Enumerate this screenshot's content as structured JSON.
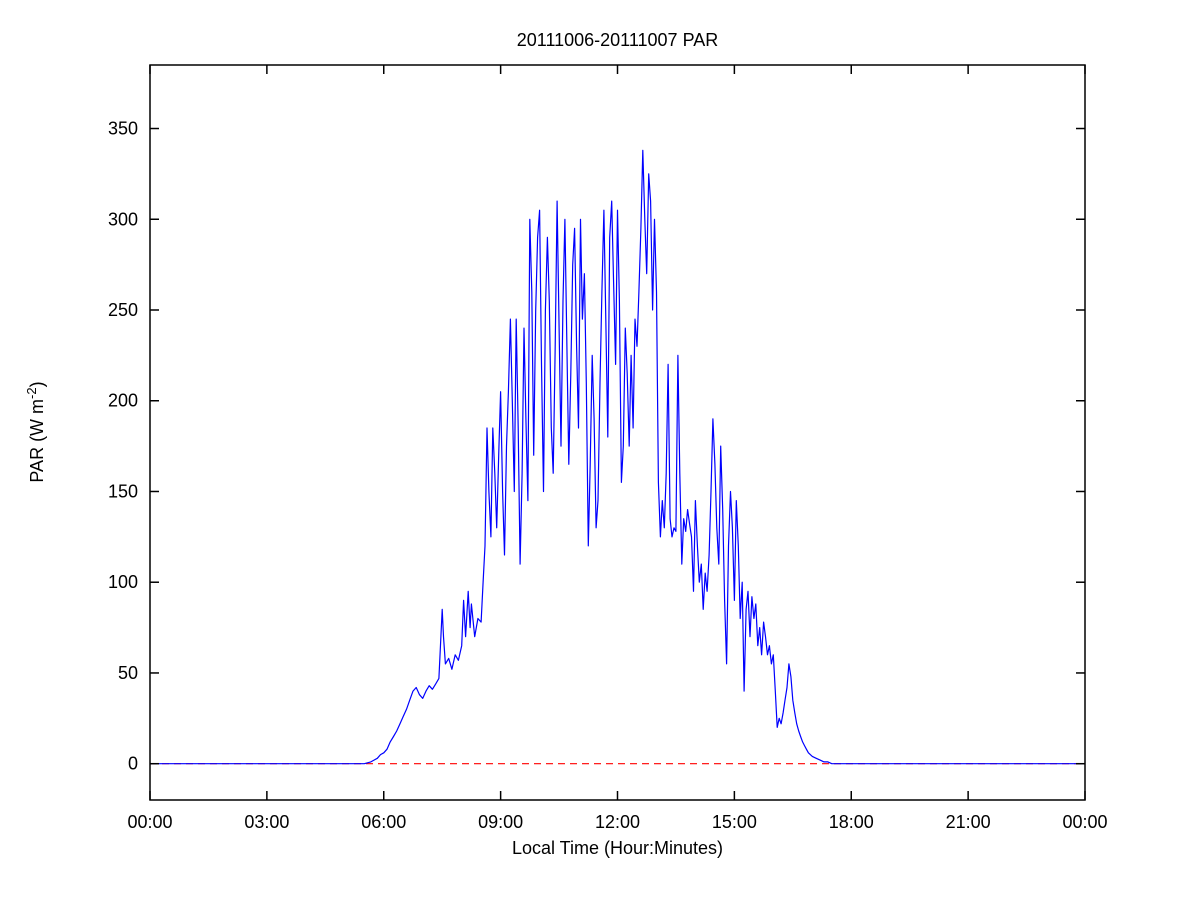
{
  "chart_data": {
    "type": "line",
    "title": "20111006-20111007 PAR",
    "xlabel": "Local Time (Hour:Minutes)",
    "ylabel": "PAR (W m-2)",
    "ylabel_parts": {
      "prefix": "PAR (W m",
      "superscript": "-2",
      "suffix": ")"
    },
    "grid": false,
    "legend": "none",
    "xlim_minutes": [
      0,
      1440
    ],
    "ylim": [
      -20,
      385
    ],
    "xticks": [
      {
        "minute": 0,
        "label": "00:00"
      },
      {
        "minute": 180,
        "label": "03:00"
      },
      {
        "minute": 360,
        "label": "06:00"
      },
      {
        "minute": 540,
        "label": "09:00"
      },
      {
        "minute": 720,
        "label": "12:00"
      },
      {
        "minute": 900,
        "label": "15:00"
      },
      {
        "minute": 1080,
        "label": "18:00"
      },
      {
        "minute": 1260,
        "label": "21:00"
      },
      {
        "minute": 1440,
        "label": "00:00"
      }
    ],
    "yticks": [
      0,
      50,
      100,
      150,
      200,
      250,
      300,
      350
    ],
    "series": [
      {
        "name": "zero-reference-line",
        "color": "#ff0000",
        "style": "dashed",
        "dash": "7 5",
        "points": [
          [
            0,
            0
          ],
          [
            1440,
            0
          ]
        ]
      },
      {
        "name": "par-measurement-line",
        "color": "#0000ff",
        "style": "solid",
        "points": [
          [
            0,
            0
          ],
          [
            60,
            0
          ],
          [
            120,
            0
          ],
          [
            180,
            0
          ],
          [
            240,
            0
          ],
          [
            300,
            0
          ],
          [
            330,
            0
          ],
          [
            340,
            1
          ],
          [
            345,
            2
          ],
          [
            350,
            3
          ],
          [
            355,
            5
          ],
          [
            360,
            6
          ],
          [
            365,
            8
          ],
          [
            370,
            12
          ],
          [
            375,
            15
          ],
          [
            380,
            18
          ],
          [
            385,
            22
          ],
          [
            390,
            26
          ],
          [
            395,
            30
          ],
          [
            400,
            35
          ],
          [
            405,
            40
          ],
          [
            410,
            42
          ],
          [
            415,
            38
          ],
          [
            420,
            36
          ],
          [
            425,
            40
          ],
          [
            430,
            43
          ],
          [
            435,
            41
          ],
          [
            440,
            44
          ],
          [
            445,
            47
          ],
          [
            450,
            85
          ],
          [
            452,
            70
          ],
          [
            455,
            55
          ],
          [
            460,
            58
          ],
          [
            465,
            52
          ],
          [
            470,
            60
          ],
          [
            475,
            57
          ],
          [
            480,
            65
          ],
          [
            483,
            90
          ],
          [
            486,
            70
          ],
          [
            490,
            95
          ],
          [
            493,
            75
          ],
          [
            495,
            88
          ],
          [
            500,
            70
          ],
          [
            505,
            80
          ],
          [
            510,
            78
          ],
          [
            513,
            100
          ],
          [
            516,
            120
          ],
          [
            519,
            185
          ],
          [
            522,
            150
          ],
          [
            525,
            125
          ],
          [
            528,
            185
          ],
          [
            531,
            160
          ],
          [
            534,
            130
          ],
          [
            537,
            170
          ],
          [
            540,
            205
          ],
          [
            543,
            150
          ],
          [
            546,
            115
          ],
          [
            549,
            175
          ],
          [
            552,
            205
          ],
          [
            555,
            245
          ],
          [
            558,
            200
          ],
          [
            561,
            150
          ],
          [
            564,
            245
          ],
          [
            567,
            185
          ],
          [
            570,
            110
          ],
          [
            573,
            160
          ],
          [
            576,
            240
          ],
          [
            579,
            190
          ],
          [
            582,
            145
          ],
          [
            585,
            300
          ],
          [
            588,
            260
          ],
          [
            591,
            170
          ],
          [
            594,
            250
          ],
          [
            597,
            290
          ],
          [
            600,
            305
          ],
          [
            603,
            220
          ],
          [
            606,
            150
          ],
          [
            609,
            250
          ],
          [
            612,
            290
          ],
          [
            615,
            255
          ],
          [
            618,
            185
          ],
          [
            621,
            160
          ],
          [
            624,
            230
          ],
          [
            627,
            310
          ],
          [
            630,
            240
          ],
          [
            633,
            175
          ],
          [
            636,
            255
          ],
          [
            639,
            300
          ],
          [
            642,
            230
          ],
          [
            645,
            165
          ],
          [
            648,
            215
          ],
          [
            651,
            275
          ],
          [
            654,
            295
          ],
          [
            657,
            230
          ],
          [
            660,
            185
          ],
          [
            663,
            300
          ],
          [
            666,
            245
          ],
          [
            669,
            270
          ],
          [
            672,
            210
          ],
          [
            675,
            120
          ],
          [
            678,
            165
          ],
          [
            681,
            225
          ],
          [
            684,
            190
          ],
          [
            687,
            130
          ],
          [
            690,
            145
          ],
          [
            693,
            210
          ],
          [
            696,
            260
          ],
          [
            699,
            305
          ],
          [
            702,
            245
          ],
          [
            705,
            180
          ],
          [
            708,
            290
          ],
          [
            711,
            310
          ],
          [
            714,
            265
          ],
          [
            717,
            220
          ],
          [
            720,
            305
          ],
          [
            723,
            255
          ],
          [
            726,
            155
          ],
          [
            729,
            175
          ],
          [
            732,
            240
          ],
          [
            735,
            215
          ],
          [
            738,
            175
          ],
          [
            741,
            225
          ],
          [
            744,
            185
          ],
          [
            747,
            245
          ],
          [
            750,
            230
          ],
          [
            753,
            260
          ],
          [
            756,
            295
          ],
          [
            759,
            338
          ],
          [
            762,
            300
          ],
          [
            765,
            270
          ],
          [
            768,
            325
          ],
          [
            771,
            310
          ],
          [
            774,
            250
          ],
          [
            777,
            300
          ],
          [
            780,
            260
          ],
          [
            783,
            155
          ],
          [
            786,
            125
          ],
          [
            789,
            145
          ],
          [
            792,
            130
          ],
          [
            795,
            160
          ],
          [
            798,
            220
          ],
          [
            801,
            135
          ],
          [
            804,
            125
          ],
          [
            807,
            130
          ],
          [
            810,
            128
          ],
          [
            813,
            225
          ],
          [
            816,
            160
          ],
          [
            819,
            110
          ],
          [
            822,
            135
          ],
          [
            825,
            128
          ],
          [
            828,
            140
          ],
          [
            831,
            132
          ],
          [
            834,
            125
          ],
          [
            837,
            95
          ],
          [
            840,
            145
          ],
          [
            843,
            120
          ],
          [
            846,
            100
          ],
          [
            849,
            110
          ],
          [
            852,
            85
          ],
          [
            855,
            105
          ],
          [
            858,
            95
          ],
          [
            861,
            115
          ],
          [
            864,
            150
          ],
          [
            867,
            190
          ],
          [
            870,
            165
          ],
          [
            873,
            130
          ],
          [
            876,
            110
          ],
          [
            879,
            175
          ],
          [
            882,
            140
          ],
          [
            885,
            90
          ],
          [
            888,
            55
          ],
          [
            891,
            120
          ],
          [
            894,
            150
          ],
          [
            897,
            130
          ],
          [
            900,
            90
          ],
          [
            903,
            145
          ],
          [
            906,
            120
          ],
          [
            909,
            80
          ],
          [
            912,
            100
          ],
          [
            915,
            40
          ],
          [
            918,
            85
          ],
          [
            921,
            95
          ],
          [
            924,
            70
          ],
          [
            927,
            92
          ],
          [
            930,
            80
          ],
          [
            933,
            88
          ],
          [
            936,
            65
          ],
          [
            939,
            75
          ],
          [
            942,
            60
          ],
          [
            945,
            78
          ],
          [
            948,
            70
          ],
          [
            951,
            60
          ],
          [
            954,
            65
          ],
          [
            957,
            55
          ],
          [
            960,
            60
          ],
          [
            963,
            40
          ],
          [
            966,
            20
          ],
          [
            969,
            25
          ],
          [
            972,
            22
          ],
          [
            975,
            28
          ],
          [
            978,
            35
          ],
          [
            981,
            42
          ],
          [
            984,
            55
          ],
          [
            987,
            48
          ],
          [
            990,
            35
          ],
          [
            993,
            28
          ],
          [
            996,
            22
          ],
          [
            999,
            18
          ],
          [
            1002,
            15
          ],
          [
            1005,
            12
          ],
          [
            1008,
            10
          ],
          [
            1011,
            8
          ],
          [
            1014,
            6
          ],
          [
            1017,
            5
          ],
          [
            1020,
            4
          ],
          [
            1026,
            3
          ],
          [
            1032,
            2
          ],
          [
            1038,
            1
          ],
          [
            1044,
            1
          ],
          [
            1050,
            0
          ],
          [
            1080,
            0
          ],
          [
            1140,
            0
          ],
          [
            1200,
            0
          ],
          [
            1260,
            0
          ],
          [
            1320,
            0
          ],
          [
            1380,
            0
          ],
          [
            1440,
            0
          ]
        ]
      }
    ]
  }
}
